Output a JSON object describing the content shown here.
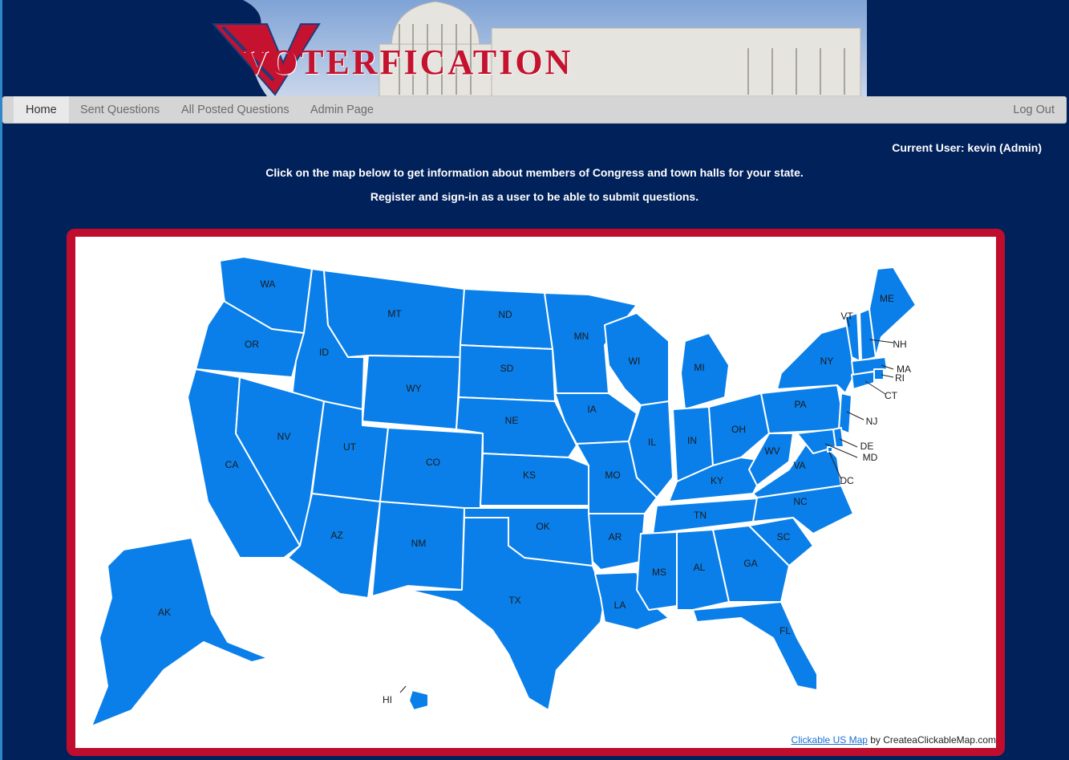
{
  "brand": {
    "title": "Voterfication"
  },
  "nav": {
    "items": [
      {
        "label": "Home",
        "active": true
      },
      {
        "label": "Sent Questions",
        "active": false
      },
      {
        "label": "All Posted Questions",
        "active": false
      },
      {
        "label": "Admin Page",
        "active": false
      }
    ],
    "logout": "Log Out"
  },
  "user": {
    "current": "Current User: kevin  (Admin)"
  },
  "intro": {
    "line1": "Click on the map below to get information about members of Congress and town halls for your state.",
    "line2": "Register and sign-in as a user to be able to submit questions."
  },
  "map": {
    "states": [
      "WA",
      "OR",
      "CA",
      "ID",
      "NV",
      "MT",
      "WY",
      "UT",
      "AZ",
      "CO",
      "NM",
      "ND",
      "SD",
      "NE",
      "KS",
      "OK",
      "TX",
      "MN",
      "IA",
      "MO",
      "AR",
      "LA",
      "WI",
      "IL",
      "MI",
      "IN",
      "OH",
      "KY",
      "TN",
      "MS",
      "AL",
      "GA",
      "FL",
      "SC",
      "NC",
      "VA",
      "WV",
      "PA",
      "NY",
      "VT",
      "NH",
      "ME",
      "MA",
      "RI",
      "CT",
      "NJ",
      "DE",
      "MD",
      "DC",
      "AK",
      "HI"
    ],
    "credit_link": "Clickable US Map",
    "credit_text": " by CreateaClickableMap.com"
  },
  "colors": {
    "state_fill": "#0a7fe9",
    "frame": "#c00d2e",
    "background": "#01215a"
  }
}
